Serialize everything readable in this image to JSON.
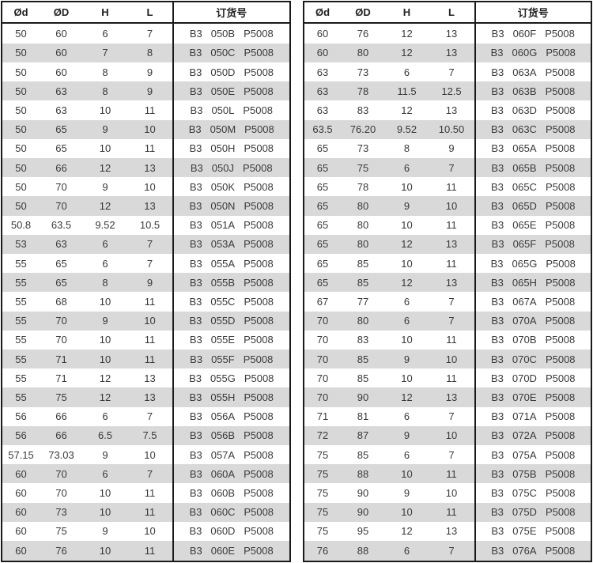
{
  "columns": [
    "Ød",
    "ØD",
    "H",
    "L",
    "订货号"
  ],
  "colors": {
    "border": "#1a1a1a",
    "text": "#3a3a3a",
    "row_alt": "#d9d9d9"
  },
  "tables": [
    {
      "name": "left",
      "rows": [
        [
          "50",
          "60",
          "6",
          "7",
          "B3 050B P5008"
        ],
        [
          "50",
          "60",
          "7",
          "8",
          "B3 050C P5008"
        ],
        [
          "50",
          "60",
          "8",
          "9",
          "B3 050D P5008"
        ],
        [
          "50",
          "63",
          "8",
          "9",
          "B3 050E P5008"
        ],
        [
          "50",
          "63",
          "10",
          "11",
          "B3 050L P5008"
        ],
        [
          "50",
          "65",
          "9",
          "10",
          "B3 050M P5008"
        ],
        [
          "50",
          "65",
          "10",
          "11",
          "B3 050H P5008"
        ],
        [
          "50",
          "66",
          "12",
          "13",
          "B3 050J P5008"
        ],
        [
          "50",
          "70",
          "9",
          "10",
          "B3 050K P5008"
        ],
        [
          "50",
          "70",
          "12",
          "13",
          "B3 050N P5008"
        ],
        [
          "50.8",
          "63.5",
          "9.52",
          "10.5",
          "B3 051A P5008"
        ],
        [
          "53",
          "63",
          "6",
          "7",
          "B3 053A P5008"
        ],
        [
          "55",
          "65",
          "6",
          "7",
          "B3 055A P5008"
        ],
        [
          "55",
          "65",
          "8",
          "9",
          "B3 055B P5008"
        ],
        [
          "55",
          "68",
          "10",
          "11",
          "B3 055C P5008"
        ],
        [
          "55",
          "70",
          "9",
          "10",
          "B3 055D P5008"
        ],
        [
          "55",
          "70",
          "10",
          "11",
          "B3 055E P5008"
        ],
        [
          "55",
          "71",
          "10",
          "11",
          "B3 055F P5008"
        ],
        [
          "55",
          "71",
          "12",
          "13",
          "B3 055G P5008"
        ],
        [
          "55",
          "75",
          "12",
          "13",
          "B3 055H P5008"
        ],
        [
          "56",
          "66",
          "6",
          "7",
          "B3 056A P5008"
        ],
        [
          "56",
          "66",
          "6.5",
          "7.5",
          "B3 056B P5008"
        ],
        [
          "57.15",
          "73.03",
          "9",
          "10",
          "B3 057A P5008"
        ],
        [
          "60",
          "70",
          "6",
          "7",
          "B3 060A P5008"
        ],
        [
          "60",
          "70",
          "10",
          "11",
          "B3 060B P5008"
        ],
        [
          "60",
          "73",
          "10",
          "11",
          "B3 060C P5008"
        ],
        [
          "60",
          "75",
          "9",
          "10",
          "B3 060D P5008"
        ],
        [
          "60",
          "76",
          "10",
          "11",
          "B3 060E P5008"
        ]
      ]
    },
    {
      "name": "right",
      "rows": [
        [
          "60",
          "76",
          "12",
          "13",
          "B3 060F P5008"
        ],
        [
          "60",
          "80",
          "12",
          "13",
          "B3 060G P5008"
        ],
        [
          "63",
          "73",
          "6",
          "7",
          "B3 063A P5008"
        ],
        [
          "63",
          "78",
          "11.5",
          "12.5",
          "B3 063B P5008"
        ],
        [
          "63",
          "83",
          "12",
          "13",
          "B3 063D P5008"
        ],
        [
          "63.5",
          "76.20",
          "9.52",
          "10.50",
          "B3 063C P5008"
        ],
        [
          "65",
          "73",
          "8",
          "9",
          "B3 065A P5008"
        ],
        [
          "65",
          "75",
          "6",
          "7",
          "B3 065B P5008"
        ],
        [
          "65",
          "78",
          "10",
          "11",
          "B3 065C P5008"
        ],
        [
          "65",
          "80",
          "9",
          "10",
          "B3 065D P5008"
        ],
        [
          "65",
          "80",
          "10",
          "11",
          "B3 065E P5008"
        ],
        [
          "65",
          "80",
          "12",
          "13",
          "B3 065F P5008"
        ],
        [
          "65",
          "85",
          "10",
          "11",
          "B3 065G P5008"
        ],
        [
          "65",
          "85",
          "12",
          "13",
          "B3 065H P5008"
        ],
        [
          "67",
          "77",
          "6",
          "7",
          "B3 067A P5008"
        ],
        [
          "70",
          "80",
          "6",
          "7",
          "B3 070A P5008"
        ],
        [
          "70",
          "83",
          "10",
          "11",
          "B3 070B P5008"
        ],
        [
          "70",
          "85",
          "9",
          "10",
          "B3 070C P5008"
        ],
        [
          "70",
          "85",
          "10",
          "11",
          "B3 070D P5008"
        ],
        [
          "70",
          "90",
          "12",
          "13",
          "B3 070E P5008"
        ],
        [
          "71",
          "81",
          "6",
          "7",
          "B3 071A P5008"
        ],
        [
          "72",
          "87",
          "9",
          "10",
          "B3 072A P5008"
        ],
        [
          "75",
          "85",
          "6",
          "7",
          "B3 075A P5008"
        ],
        [
          "75",
          "88",
          "10",
          "11",
          "B3 075B P5008"
        ],
        [
          "75",
          "90",
          "9",
          "10",
          "B3 075C P5008"
        ],
        [
          "75",
          "90",
          "10",
          "11",
          "B3 075D P5008"
        ],
        [
          "75",
          "95",
          "12",
          "13",
          "B3 075E P5008"
        ],
        [
          "76",
          "88",
          "6",
          "7",
          "B3 076A P5008"
        ]
      ]
    }
  ]
}
